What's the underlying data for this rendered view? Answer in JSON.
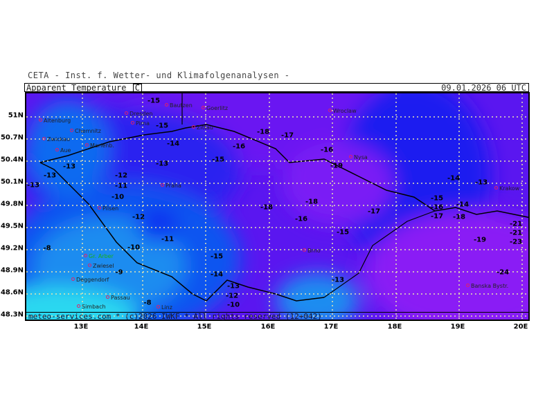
{
  "header": {
    "institute": "CETA - Inst. f. Wetter- und Klimafolgenanalysen -",
    "parameter": "Apparent_Temperature_",
    "unit": "C",
    "valid_time": "09.01.2026 06 UTC"
  },
  "footer": {
    "copyright": "meteo-services.com * (c)2026 IWKF * All rights reserved (12+042)"
  },
  "axes": {
    "lat_labels": [
      "51N",
      "50.7N",
      "50.4N",
      "50.1N",
      "49.8N",
      "49.5N",
      "49.2N",
      "48.9N",
      "48.6N",
      "48.3N"
    ],
    "lon_labels": [
      "13E",
      "14E",
      "15E",
      "16E",
      "17E",
      "18E",
      "19E",
      "20E"
    ]
  },
  "colors": {
    "coldest": "#8a1cf5",
    "cold": "#5a16f0",
    "mid": "#1a1ef0",
    "mild": "#0a55f0",
    "warm": "#1a8cf0",
    "warmest": "#2ad8f0",
    "grid": "#e6e6b0"
  },
  "temperatures": [
    "-15",
    "-15",
    "-14",
    "-16",
    "-15",
    "-13",
    "-18",
    "-17",
    "-16",
    "-13",
    "-19",
    "-18",
    "-14",
    "-13",
    "-12",
    "-11",
    "-10",
    "-12",
    "-11",
    "-10",
    "-8",
    "-9",
    "-8",
    "-15",
    "-14",
    "-13",
    "-12",
    "-10",
    "-18",
    "-16",
    "-17",
    "-15",
    "-13",
    "-15",
    "-16",
    "-17",
    "-18",
    "-19",
    "-21",
    "-21",
    "-23",
    "-24",
    "-14",
    "-13",
    "-13"
  ],
  "cities": [
    "Bautzen",
    "Goerlitz",
    "Dresden",
    "Pirna",
    "Altenburg",
    "Chemnitz",
    "Zwickau",
    "Zittau",
    "Marienb.",
    "Aue",
    "Wroclaw",
    "Nysa",
    "Krakow",
    "Praha",
    "Pilsen",
    "Gr. Arber",
    "Zwiesel",
    "Deggendorf",
    "Passau",
    "Simbach",
    "Linz",
    "Brno",
    "Banska Bystr."
  ]
}
